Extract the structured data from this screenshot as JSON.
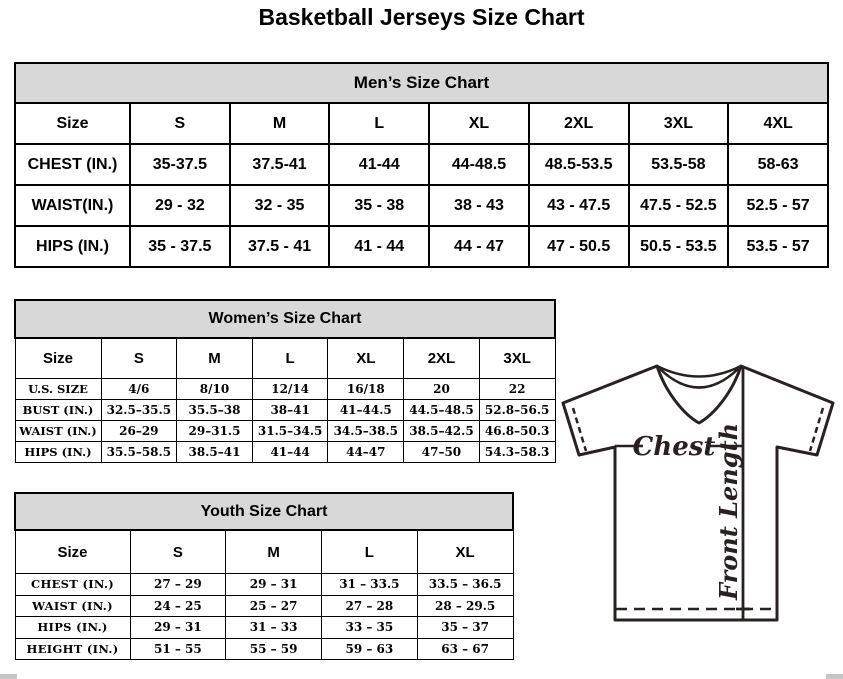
{
  "page": {
    "title": "Basketball Jerseys Size Chart"
  },
  "mens": {
    "title": "Men’s Size Chart",
    "columns": [
      "Size",
      "S",
      "M",
      "L",
      "XL",
      "2XL",
      "3XL",
      "4XL"
    ],
    "rows": [
      {
        "label": "CHEST (IN.)",
        "values": [
          "35-37.5",
          "37.5-41",
          "41-44",
          "44-48.5",
          "48.5-53.5",
          "53.5-58",
          "58-63"
        ]
      },
      {
        "label": "WAIST(IN.)",
        "values": [
          "29 - 32",
          "32 - 35",
          "35 - 38",
          "38 - 43",
          "43 - 47.5",
          "47.5 - 52.5",
          "52.5 - 57"
        ]
      },
      {
        "label": "HIPS (IN.)",
        "values": [
          "35 - 37.5",
          "37.5 - 41",
          "41 - 44",
          "44 - 47",
          "47 - 50.5",
          "50.5 - 53.5",
          "53.5 - 57"
        ]
      }
    ]
  },
  "womens": {
    "title": "Women’s Size Chart",
    "columns": [
      "Size",
      "S",
      "M",
      "L",
      "XL",
      "2XL",
      "3XL"
    ],
    "rows": [
      {
        "label": "U.S. SIZE",
        "values": [
          "4/6",
          "8/10",
          "12/14",
          "16/18",
          "20",
          "22"
        ]
      },
      {
        "label": "BUST (IN.)",
        "values": [
          "32.5–35.5",
          "35.5–38",
          "38–41",
          "41–44.5",
          "44.5–48.5",
          "52.8–56.5"
        ]
      },
      {
        "label": "WAIST (IN.)",
        "values": [
          "26–29",
          "29–31.5",
          "31.5–34.5",
          "34.5–38.5",
          "38.5–42.5",
          "46.8–50.3"
        ]
      },
      {
        "label": "HIPS (IN.)",
        "values": [
          "35.5–58.5",
          "38.5–41",
          "41–44",
          "44–47",
          "47–50",
          "54.3–58.3"
        ]
      }
    ]
  },
  "youth": {
    "title": "Youth Size Chart",
    "columns": [
      "Size",
      "S",
      "M",
      "L",
      "XL"
    ],
    "rows": [
      {
        "label": "CHEST (IN.)",
        "values": [
          "27 – 29",
          "29 – 31",
          "31 – 33.5",
          "33.5 – 36.5"
        ]
      },
      {
        "label": "WAIST (IN.)",
        "values": [
          "24 – 25",
          "25 – 27",
          "27 – 28",
          "28 – 29.5"
        ]
      },
      {
        "label": "HIPS (IN.)",
        "values": [
          "29 – 31",
          "31 – 33",
          "33 – 35",
          "35 – 37"
        ]
      },
      {
        "label": "HEIGHT (IN.)",
        "values": [
          "51 – 55",
          "55 – 59",
          "59 – 63",
          "63 – 67"
        ]
      }
    ]
  },
  "diagram": {
    "chest_label": "Chest",
    "front_length_label": "Front Length"
  },
  "colors": {
    "band_background": "#d8d8d8",
    "table_border": "#000000",
    "diagram_ink": "#272121"
  }
}
